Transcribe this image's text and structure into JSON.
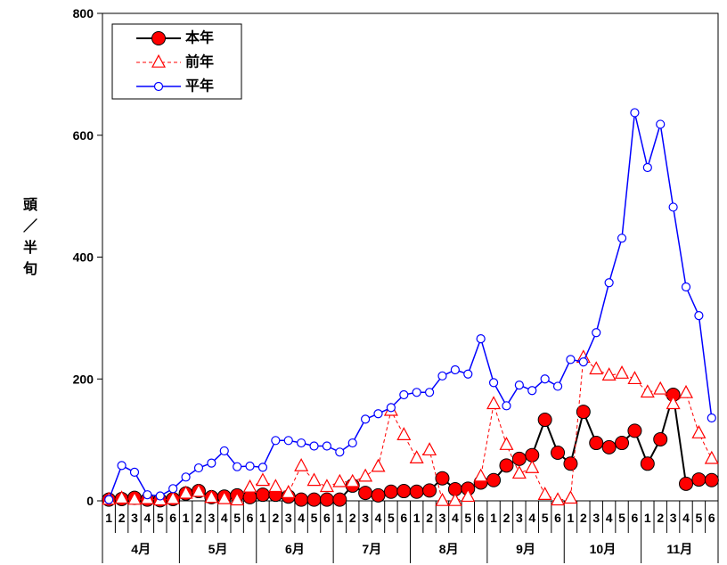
{
  "chart_data": {
    "type": "line",
    "ylabel": "頭／半旬",
    "ylim": [
      0,
      800
    ],
    "yticks": [
      0,
      200,
      400,
      600,
      800
    ],
    "months": [
      "4月",
      "5月",
      "6月",
      "7月",
      "8月",
      "9月",
      "10月",
      "11月"
    ],
    "pentads": [
      "1",
      "2",
      "3",
      "4",
      "5",
      "6"
    ],
    "legend": "top-left",
    "grid": false,
    "series": [
      {
        "name": "本年",
        "line_color": "#000000",
        "marker_color": "#ff0000",
        "marker": "filled-circle",
        "line_style": "solid",
        "values": [
          2,
          3,
          5,
          2,
          1,
          3,
          12,
          16,
          6,
          7,
          9,
          6,
          10,
          10,
          7,
          2,
          2,
          2,
          2,
          25,
          13,
          9,
          15,
          16,
          15,
          17,
          37,
          19,
          20,
          30,
          34,
          58,
          69,
          75,
          133,
          79,
          61,
          146,
          95,
          88,
          95,
          115,
          61,
          101,
          174,
          28,
          35,
          34
        ]
      },
      {
        "name": "前年",
        "line_color": "#ff0000",
        "marker_color": "#ff0000",
        "marker": "open-triangle",
        "line_style": "dashed",
        "values": [
          2,
          4,
          2,
          3,
          1,
          3,
          12,
          15,
          5,
          3,
          1,
          22,
          33,
          23,
          13,
          57,
          33,
          23,
          31,
          31,
          40,
          56,
          148,
          108,
          70,
          83,
          0,
          0,
          7,
          40,
          159,
          92,
          45,
          54,
          10,
          1,
          4,
          235,
          216,
          206,
          209,
          200,
          178,
          183,
          159,
          177,
          111,
          69
        ]
      },
      {
        "name": "平年",
        "line_color": "#0000ff",
        "marker_color": "#0000ff",
        "marker": "open-circle",
        "line_style": "solid",
        "values": [
          2,
          58,
          47,
          10,
          8,
          20,
          39,
          54,
          62,
          82,
          56,
          57,
          55,
          99,
          99,
          95,
          90,
          90,
          80,
          95,
          134,
          143,
          153,
          174,
          178,
          178,
          205,
          215,
          208,
          266,
          194,
          156,
          190,
          181,
          200,
          188,
          232,
          228,
          276,
          358,
          431,
          637,
          547,
          618,
          482,
          351,
          304,
          136
        ]
      }
    ]
  }
}
